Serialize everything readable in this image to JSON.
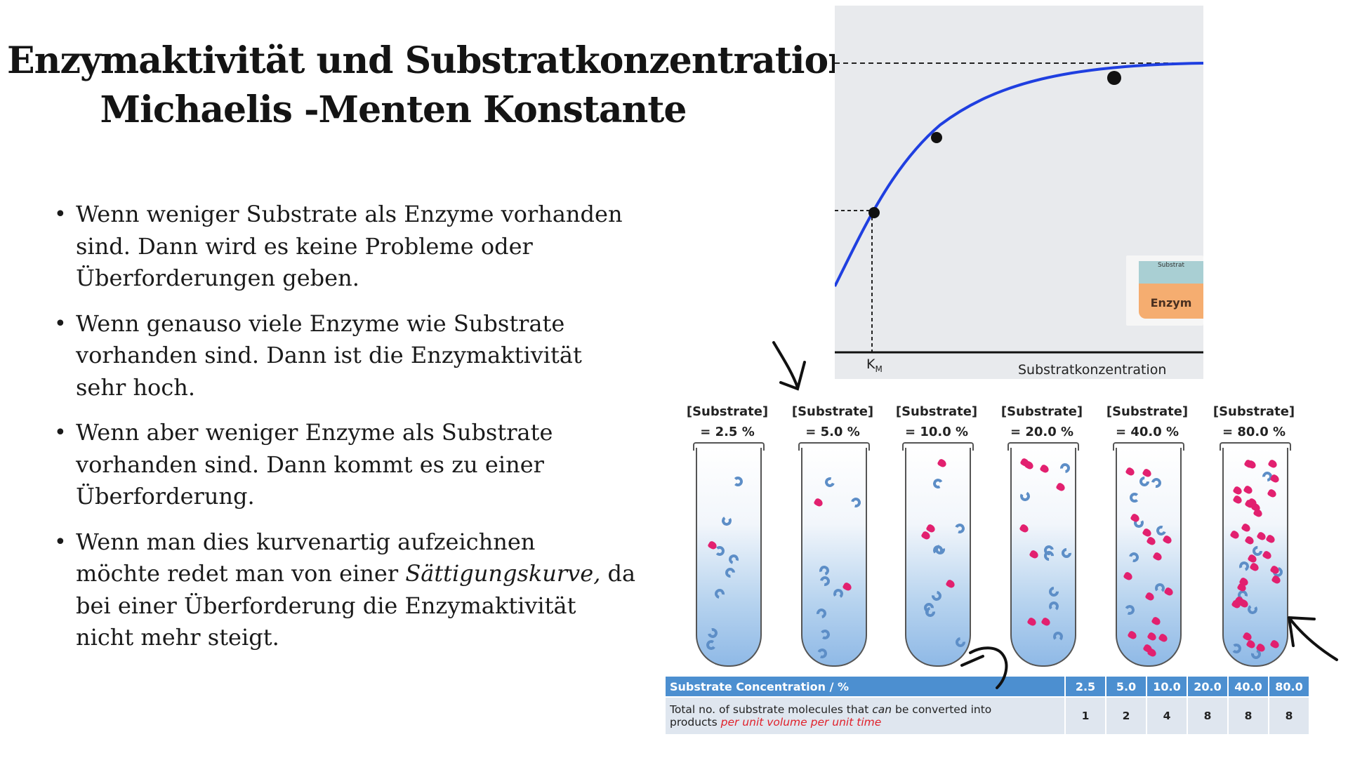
{
  "title": {
    "line1": "Enzymaktivität und Substratkonzentration",
    "line2": "Michaelis -Menten  Konstante"
  },
  "bullets": [
    {
      "lines": [
        "Wenn weniger Substrate als Enzyme vorhanden",
        "sind. Dann wird es keine Probleme oder",
        "Überforderungen geben."
      ]
    },
    {
      "lines": [
        "Wenn genauso viele Enzyme wie Substrate",
        "vorhanden sind. Dann ist die Enzymaktivität",
        "sehr hoch."
      ]
    },
    {
      "lines": [
        "Wenn aber weniger Enzyme als Substrate",
        "vorhanden sind. Dann kommt es zu einer",
        "Überforderung."
      ]
    },
    {
      "line1": "Wenn man dies kurvenartig aufzeichnen",
      "line2_pre": "möchte redet man von einer ",
      "line2_em": "Sättigungskurve,",
      "line2_post": " da",
      "line3": "bei einer Überforderung die Enzymaktivität",
      "line4": "nicht mehr steigt."
    }
  ],
  "graph": {
    "km_label": "K",
    "km_sub": "M",
    "x_label": "Substratkonzentration",
    "inset_substrate": "Substrat",
    "inset_enzyme": "Enzym",
    "curve_color": "#1f3fe0"
  },
  "tubes": {
    "header_line1": "[Substrate]",
    "concentrations": [
      "= 2.5 %",
      "= 5.0 %",
      "= 10.0 %",
      "= 20.0 %",
      "= 40.0 %",
      "= 80.0 %"
    ],
    "table": {
      "row1_label": "Substrate Concentration / %",
      "row1_values": [
        "2.5",
        "5.0",
        "10.0",
        "20.0",
        "40.0",
        "80.0"
      ],
      "row2_label_a": "Total no. of substrate molecules that ",
      "row2_label_em": "can",
      "row2_label_b": " be converted into",
      "row2_label_c": "products ",
      "row2_label_red": "per unit volume per unit time",
      "row2_values": [
        "1",
        "2",
        "4",
        "8",
        "8",
        "8"
      ]
    }
  }
}
